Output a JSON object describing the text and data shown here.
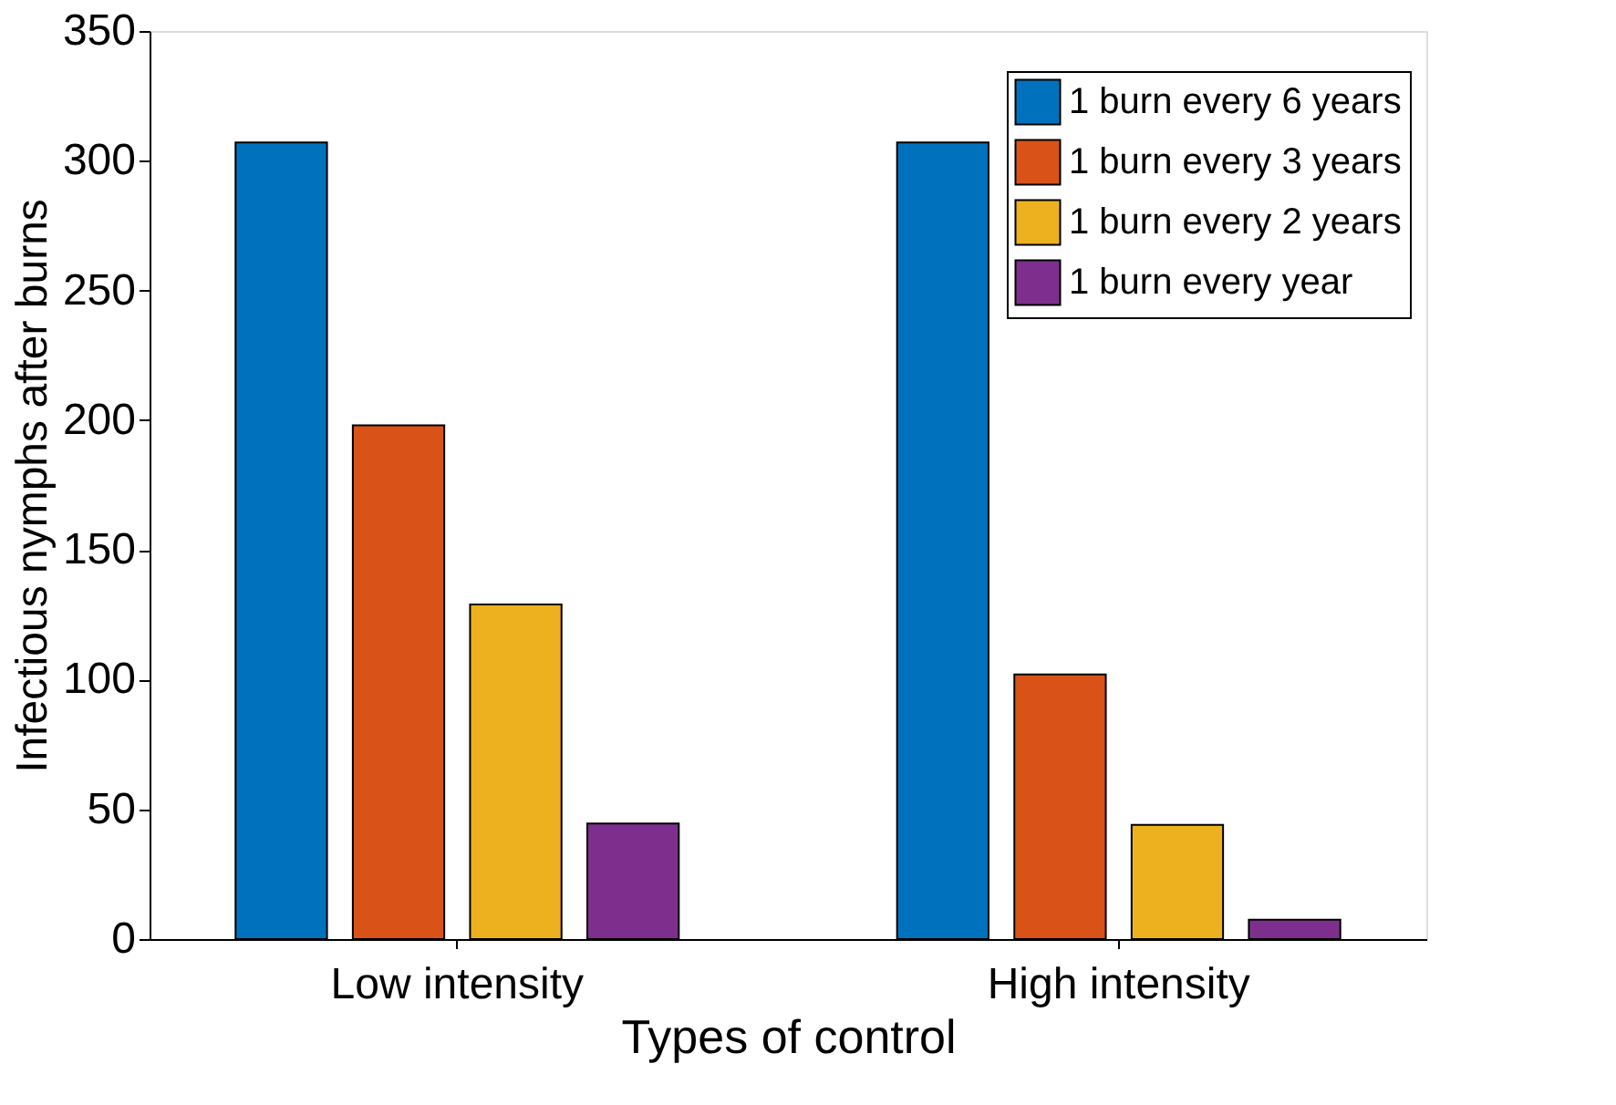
{
  "chart_data": {
    "type": "bar",
    "xlabel": "Types of control",
    "ylabel": "Infectious nymphs after burns",
    "categories": [
      "Low intensity",
      "High intensity"
    ],
    "series": [
      {
        "name": "1 burn every 6 years",
        "color": "#0072bd",
        "values": [
          307,
          307
        ]
      },
      {
        "name": "1 burn every 3 years",
        "color": "#d95319",
        "values": [
          198,
          102
        ]
      },
      {
        "name": "1 burn every 2 years",
        "color": "#edb120",
        "values": [
          129,
          44
        ]
      },
      {
        "name": "1 burn every year",
        "color": "#7e2f8e",
        "values": [
          44.5,
          7.5
        ]
      }
    ],
    "ylim": [
      0,
      350
    ],
    "yticks": [
      0,
      50,
      100,
      150,
      200,
      250,
      300,
      350
    ],
    "grid": false,
    "legend": "top right"
  }
}
